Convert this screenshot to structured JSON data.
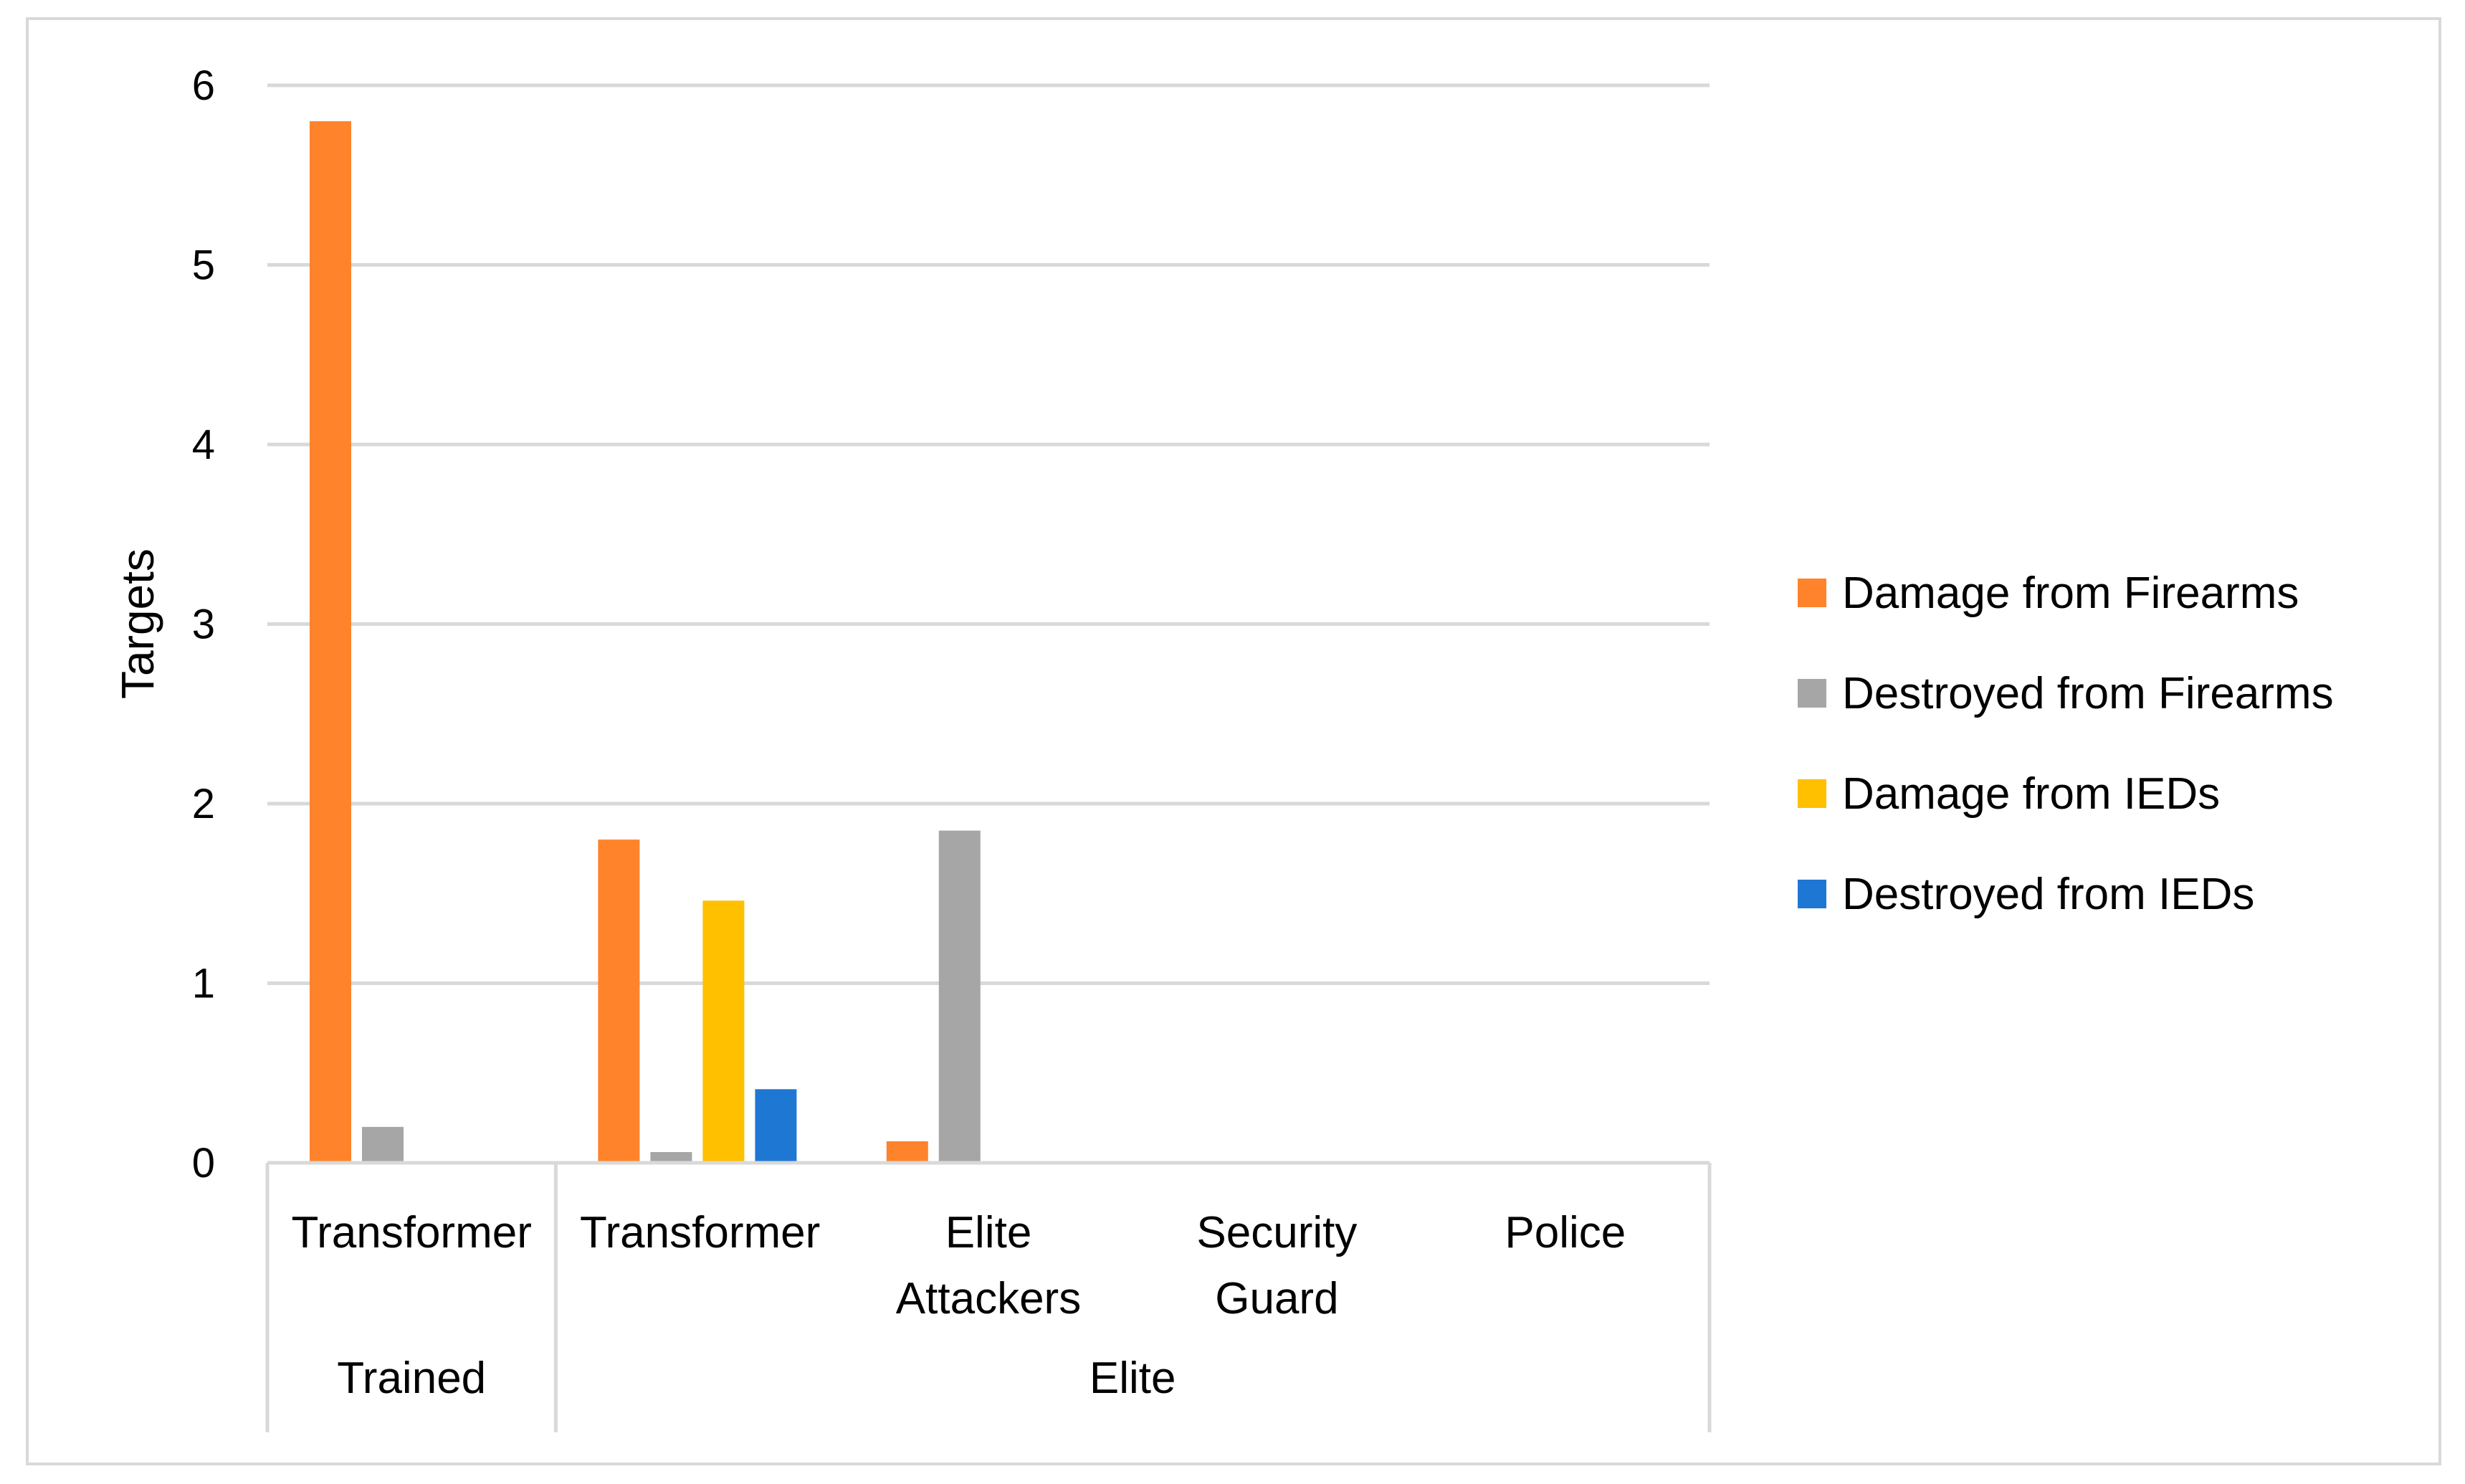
{
  "chart_data": {
    "type": "bar",
    "title": "",
    "xlabel": "",
    "ylabel": "Targets",
    "ylim": [
      0,
      6
    ],
    "yticks": [
      0,
      1,
      2,
      3,
      4,
      5,
      6
    ],
    "grid": true,
    "legend_position": "right",
    "groups": [
      {
        "label": "Trained",
        "span": 1
      },
      {
        "label": "Elite",
        "span": 4
      }
    ],
    "categories": [
      [
        "Transformer"
      ],
      [
        "Transformer"
      ],
      [
        "Elite",
        "Attackers"
      ],
      [
        "Security",
        "Guard"
      ],
      [
        "Police"
      ]
    ],
    "series": [
      {
        "name": "Damage from Firearms",
        "color": "#ff832b",
        "values": [
          5.8,
          1.8,
          0.12,
          0,
          0
        ]
      },
      {
        "name": "Destroyed from Firearms",
        "color": "#a6a6a6",
        "values": [
          0.2,
          0.06,
          1.85,
          0,
          0
        ]
      },
      {
        "name": "Damage from IEDs",
        "color": "#ffc000",
        "values": [
          0,
          1.46,
          0,
          0,
          0
        ]
      },
      {
        "name": "Destroyed from IEDs",
        "color": "#1f77d4",
        "values": [
          0,
          0.41,
          0,
          0,
          0
        ]
      }
    ]
  }
}
